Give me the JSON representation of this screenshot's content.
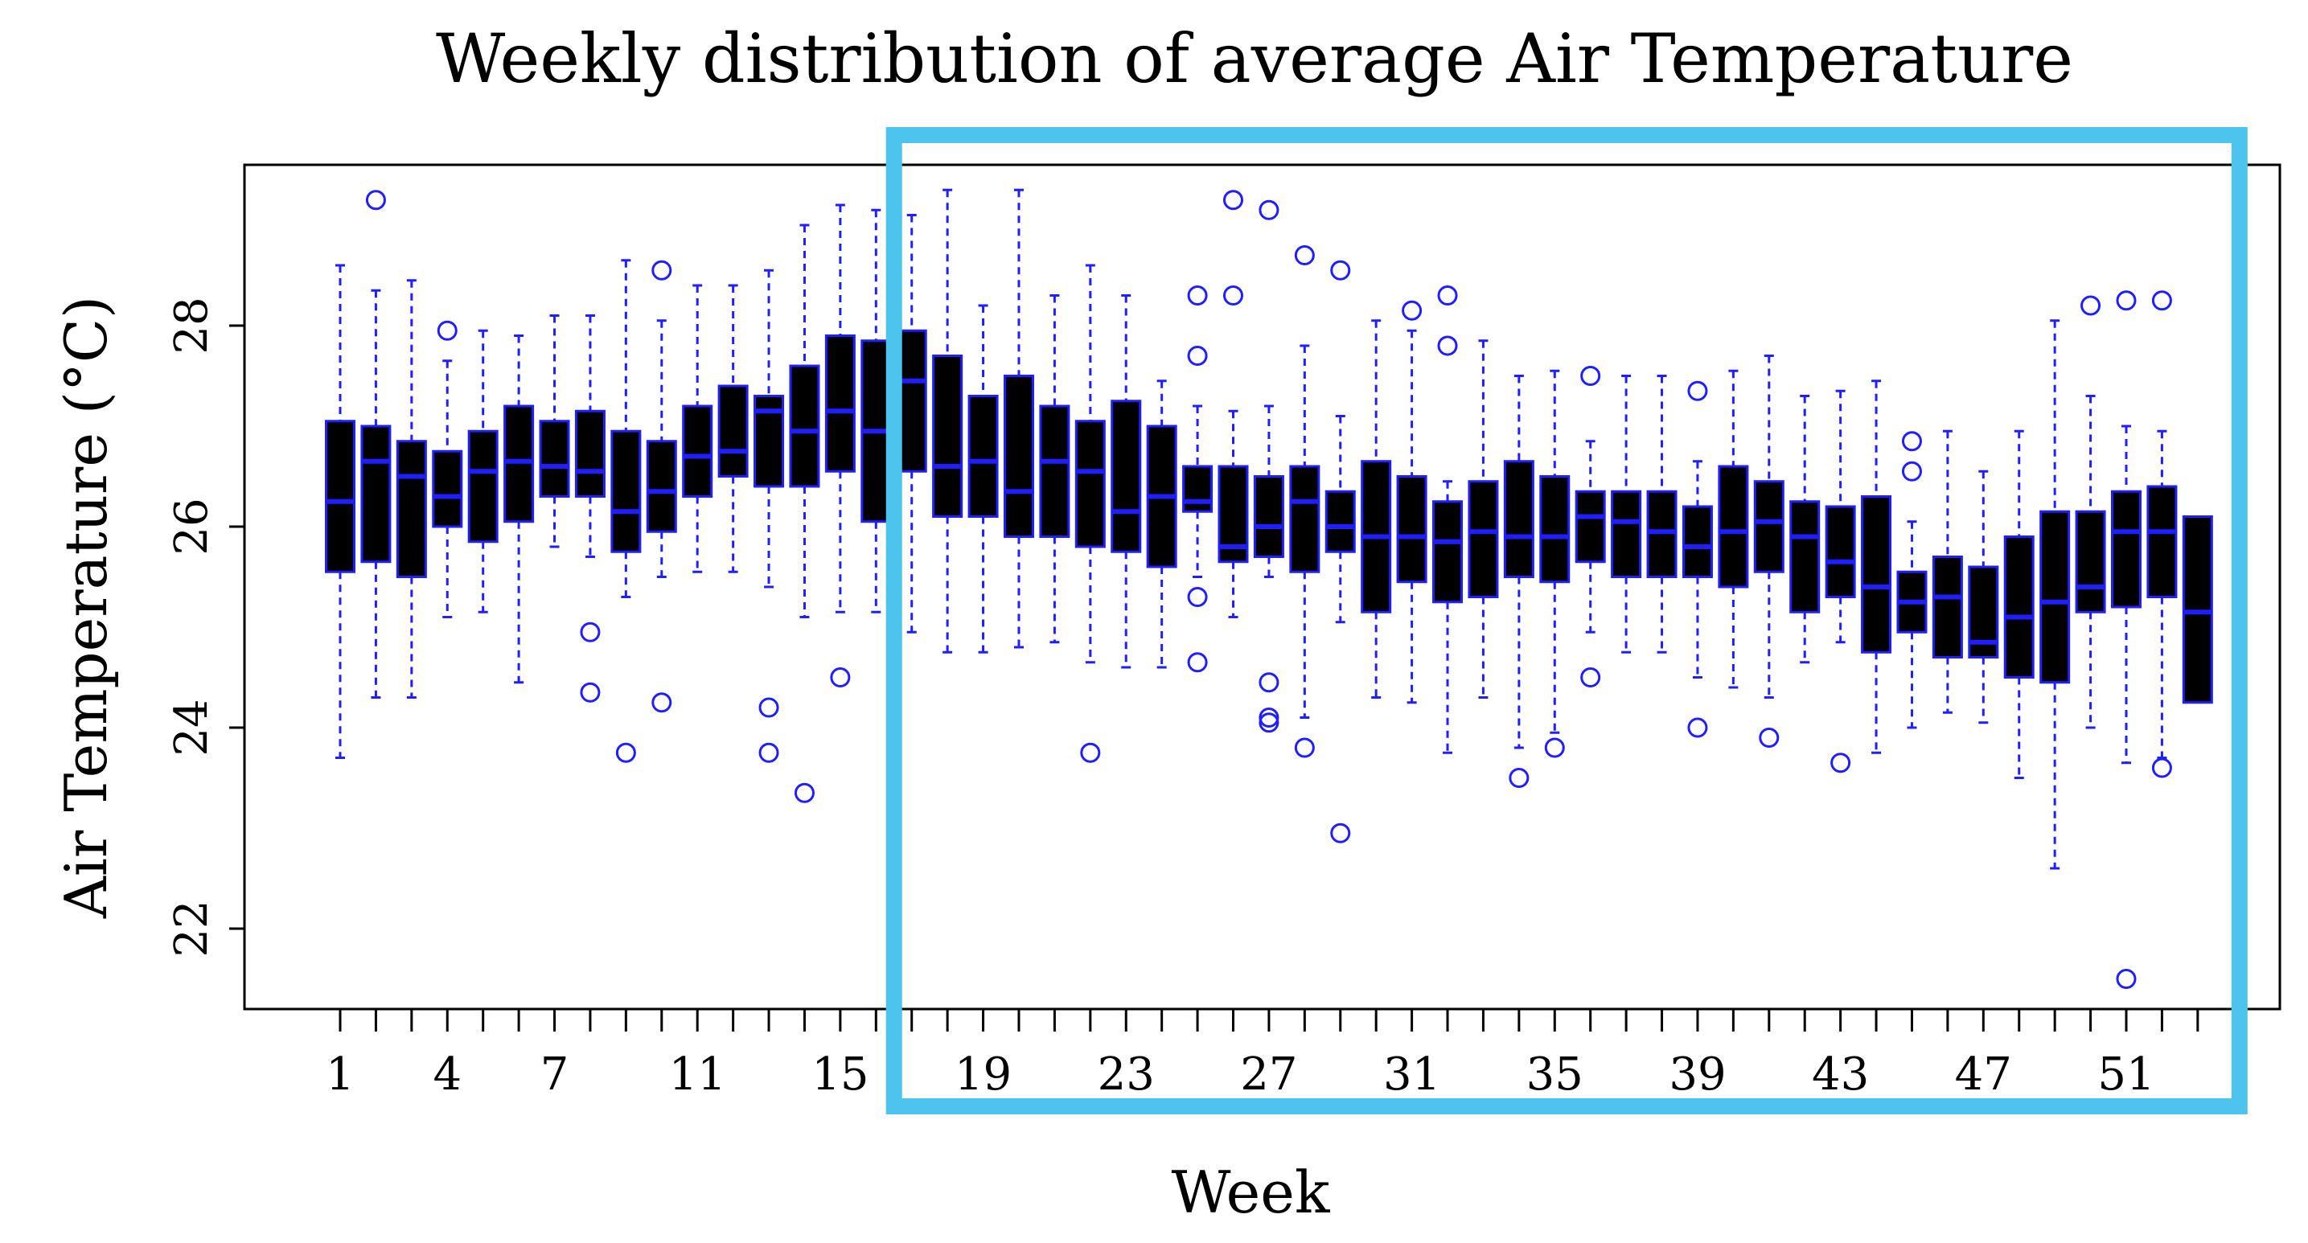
{
  "chart_data": {
    "type": "boxplot",
    "title": "Weekly distribution of average Air Temperature",
    "xlabel": "Week",
    "ylabel": "Air Temperature (°C)",
    "ylim": [
      21.2,
      29.6
    ],
    "y_ticks": [
      22,
      24,
      26,
      28
    ],
    "x_tick_labels": [
      "1",
      "4",
      "7",
      "11",
      "15",
      "19",
      "23",
      "27",
      "31",
      "35",
      "39",
      "43",
      "47",
      "51"
    ],
    "box_fill": "#000000",
    "box_border": "#1e1eff",
    "outlier_color": "#1e1eff",
    "highlight": {
      "color": "#4cc4ee",
      "from_week": 17,
      "to_week": 53
    },
    "weeks": [
      {
        "week": 1,
        "lower": 23.7,
        "q1": 25.55,
        "median": 26.25,
        "q3": 27.05,
        "upper": 28.6,
        "outliers": []
      },
      {
        "week": 2,
        "lower": 24.3,
        "q1": 25.65,
        "median": 26.65,
        "q3": 27.0,
        "upper": 28.35,
        "outliers": [
          29.25
        ]
      },
      {
        "week": 3,
        "lower": 24.3,
        "q1": 25.5,
        "median": 26.5,
        "q3": 26.85,
        "upper": 28.45,
        "outliers": []
      },
      {
        "week": 4,
        "lower": 25.1,
        "q1": 26.0,
        "median": 26.3,
        "q3": 26.75,
        "upper": 27.65,
        "outliers": [
          27.95
        ]
      },
      {
        "week": 5,
        "lower": 25.15,
        "q1": 25.85,
        "median": 26.55,
        "q3": 26.95,
        "upper": 27.95,
        "outliers": []
      },
      {
        "week": 6,
        "lower": 24.45,
        "q1": 26.05,
        "median": 26.65,
        "q3": 27.2,
        "upper": 27.9,
        "outliers": []
      },
      {
        "week": 7,
        "lower": 25.8,
        "q1": 26.3,
        "median": 26.6,
        "q3": 27.05,
        "upper": 28.1,
        "outliers": []
      },
      {
        "week": 8,
        "lower": 25.7,
        "q1": 26.3,
        "median": 26.55,
        "q3": 27.15,
        "upper": 28.1,
        "outliers": [
          24.95,
          24.35
        ]
      },
      {
        "week": 9,
        "lower": 25.3,
        "q1": 25.75,
        "median": 26.15,
        "q3": 26.95,
        "upper": 28.65,
        "outliers": [
          23.75
        ]
      },
      {
        "week": 10,
        "lower": 25.5,
        "q1": 25.95,
        "median": 26.35,
        "q3": 26.85,
        "upper": 28.05,
        "outliers": [
          28.55,
          24.25
        ]
      },
      {
        "week": 11,
        "lower": 25.55,
        "q1": 26.3,
        "median": 26.7,
        "q3": 27.2,
        "upper": 28.4,
        "outliers": []
      },
      {
        "week": 12,
        "lower": 25.55,
        "q1": 26.5,
        "median": 26.75,
        "q3": 27.4,
        "upper": 28.4,
        "outliers": []
      },
      {
        "week": 13,
        "lower": 25.4,
        "q1": 26.4,
        "median": 27.15,
        "q3": 27.3,
        "upper": 28.55,
        "outliers": [
          24.2,
          23.75
        ]
      },
      {
        "week": 14,
        "lower": 25.1,
        "q1": 26.4,
        "median": 26.95,
        "q3": 27.6,
        "upper": 29.0,
        "outliers": [
          23.35
        ]
      },
      {
        "week": 15,
        "lower": 25.15,
        "q1": 26.55,
        "median": 27.15,
        "q3": 27.9,
        "upper": 29.2,
        "outliers": [
          24.5
        ]
      },
      {
        "week": 16,
        "lower": 25.15,
        "q1": 26.05,
        "median": 26.95,
        "q3": 27.85,
        "upper": 29.15,
        "outliers": []
      },
      {
        "week": 17,
        "lower": 24.95,
        "q1": 26.55,
        "median": 27.45,
        "q3": 27.95,
        "upper": 29.1,
        "outliers": []
      },
      {
        "week": 18,
        "lower": 24.75,
        "q1": 26.1,
        "median": 26.6,
        "q3": 27.7,
        "upper": 29.35,
        "outliers": []
      },
      {
        "week": 19,
        "lower": 24.75,
        "q1": 26.1,
        "median": 26.65,
        "q3": 27.3,
        "upper": 28.2,
        "outliers": []
      },
      {
        "week": 20,
        "lower": 24.8,
        "q1": 25.9,
        "median": 26.35,
        "q3": 27.5,
        "upper": 29.35,
        "outliers": []
      },
      {
        "week": 21,
        "lower": 24.85,
        "q1": 25.9,
        "median": 26.65,
        "q3": 27.2,
        "upper": 28.3,
        "outliers": []
      },
      {
        "week": 22,
        "lower": 24.65,
        "q1": 25.8,
        "median": 26.55,
        "q3": 27.05,
        "upper": 28.6,
        "outliers": [
          23.75
        ]
      },
      {
        "week": 23,
        "lower": 24.6,
        "q1": 25.75,
        "median": 26.15,
        "q3": 27.25,
        "upper": 28.3,
        "outliers": []
      },
      {
        "week": 24,
        "lower": 24.6,
        "q1": 25.6,
        "median": 26.3,
        "q3": 27.0,
        "upper": 27.45,
        "outliers": []
      },
      {
        "week": 25,
        "lower": 25.5,
        "q1": 26.15,
        "median": 26.25,
        "q3": 26.6,
        "upper": 27.2,
        "outliers": [
          28.3,
          27.7,
          25.3,
          24.65
        ]
      },
      {
        "week": 26,
        "lower": 25.1,
        "q1": 25.65,
        "median": 25.8,
        "q3": 26.6,
        "upper": 27.15,
        "outliers": [
          29.25,
          28.3
        ]
      },
      {
        "week": 27,
        "lower": 25.5,
        "q1": 25.7,
        "median": 26.0,
        "q3": 26.5,
        "upper": 27.2,
        "outliers": [
          29.15,
          24.45,
          24.1,
          24.05
        ]
      },
      {
        "week": 28,
        "lower": 24.1,
        "q1": 25.55,
        "median": 26.25,
        "q3": 26.6,
        "upper": 27.8,
        "outliers": [
          28.7,
          23.8
        ]
      },
      {
        "week": 29,
        "lower": 25.05,
        "q1": 25.75,
        "median": 26.0,
        "q3": 26.35,
        "upper": 27.1,
        "outliers": [
          28.55,
          22.95
        ]
      },
      {
        "week": 30,
        "lower": 24.3,
        "q1": 25.15,
        "median": 25.9,
        "q3": 26.65,
        "upper": 28.05,
        "outliers": []
      },
      {
        "week": 31,
        "lower": 24.25,
        "q1": 25.45,
        "median": 25.9,
        "q3": 26.5,
        "upper": 27.95,
        "outliers": [
          28.15
        ]
      },
      {
        "week": 32,
        "lower": 23.75,
        "q1": 25.25,
        "median": 25.85,
        "q3": 26.25,
        "upper": 26.45,
        "outliers": [
          28.3,
          27.8
        ]
      },
      {
        "week": 33,
        "lower": 24.3,
        "q1": 25.3,
        "median": 25.95,
        "q3": 26.45,
        "upper": 27.85,
        "outliers": []
      },
      {
        "week": 34,
        "lower": 23.8,
        "q1": 25.5,
        "median": 25.9,
        "q3": 26.65,
        "upper": 27.5,
        "outliers": [
          23.5
        ]
      },
      {
        "week": 35,
        "lower": 23.95,
        "q1": 25.45,
        "median": 25.9,
        "q3": 26.5,
        "upper": 27.55,
        "outliers": [
          23.8
        ]
      },
      {
        "week": 36,
        "lower": 24.95,
        "q1": 25.65,
        "median": 26.1,
        "q3": 26.35,
        "upper": 26.85,
        "outliers": [
          27.5,
          24.5
        ]
      },
      {
        "week": 37,
        "lower": 24.75,
        "q1": 25.5,
        "median": 26.05,
        "q3": 26.35,
        "upper": 27.5,
        "outliers": []
      },
      {
        "week": 38,
        "lower": 24.75,
        "q1": 25.5,
        "median": 25.95,
        "q3": 26.35,
        "upper": 27.5,
        "outliers": []
      },
      {
        "week": 39,
        "lower": 24.5,
        "q1": 25.5,
        "median": 25.8,
        "q3": 26.2,
        "upper": 26.65,
        "outliers": [
          27.35,
          24.0
        ]
      },
      {
        "week": 40,
        "lower": 24.4,
        "q1": 25.4,
        "median": 25.95,
        "q3": 26.6,
        "upper": 27.55,
        "outliers": []
      },
      {
        "week": 41,
        "lower": 24.3,
        "q1": 25.55,
        "median": 26.05,
        "q3": 26.45,
        "upper": 27.7,
        "outliers": [
          23.9
        ]
      },
      {
        "week": 42,
        "lower": 24.65,
        "q1": 25.15,
        "median": 25.9,
        "q3": 26.25,
        "upper": 27.3,
        "outliers": []
      },
      {
        "week": 43,
        "lower": 24.85,
        "q1": 25.3,
        "median": 25.65,
        "q3": 26.2,
        "upper": 27.35,
        "outliers": [
          23.65
        ]
      },
      {
        "week": 44,
        "lower": 23.75,
        "q1": 24.75,
        "median": 25.4,
        "q3": 26.3,
        "upper": 27.45,
        "outliers": []
      },
      {
        "week": 45,
        "lower": 24.0,
        "q1": 24.95,
        "median": 25.25,
        "q3": 25.55,
        "upper": 26.05,
        "outliers": [
          26.85,
          26.55
        ]
      },
      {
        "week": 46,
        "lower": 24.15,
        "q1": 24.7,
        "median": 25.3,
        "q3": 25.7,
        "upper": 26.95,
        "outliers": []
      },
      {
        "week": 47,
        "lower": 24.05,
        "q1": 24.7,
        "median": 24.85,
        "q3": 25.6,
        "upper": 26.55,
        "outliers": []
      },
      {
        "week": 48,
        "lower": 23.5,
        "q1": 24.5,
        "median": 25.1,
        "q3": 25.9,
        "upper": 26.95,
        "outliers": []
      },
      {
        "week": 49,
        "lower": 22.6,
        "q1": 24.45,
        "median": 25.25,
        "q3": 26.15,
        "upper": 28.05,
        "outliers": []
      },
      {
        "week": 50,
        "lower": 24.0,
        "q1": 25.15,
        "median": 25.4,
        "q3": 26.15,
        "upper": 27.3,
        "outliers": [
          28.2
        ]
      },
      {
        "week": 51,
        "lower": 23.65,
        "q1": 25.2,
        "median": 25.95,
        "q3": 26.35,
        "upper": 27.0,
        "outliers": [
          28.25,
          21.5
        ]
      },
      {
        "week": 52,
        "lower": 23.7,
        "q1": 25.3,
        "median": 25.95,
        "q3": 26.4,
        "upper": 26.95,
        "outliers": [
          28.25,
          23.6
        ]
      },
      {
        "week": 53,
        "lower": 24.25,
        "q1": 24.25,
        "median": 25.15,
        "q3": 26.1,
        "upper": 26.1,
        "outliers": []
      }
    ]
  }
}
